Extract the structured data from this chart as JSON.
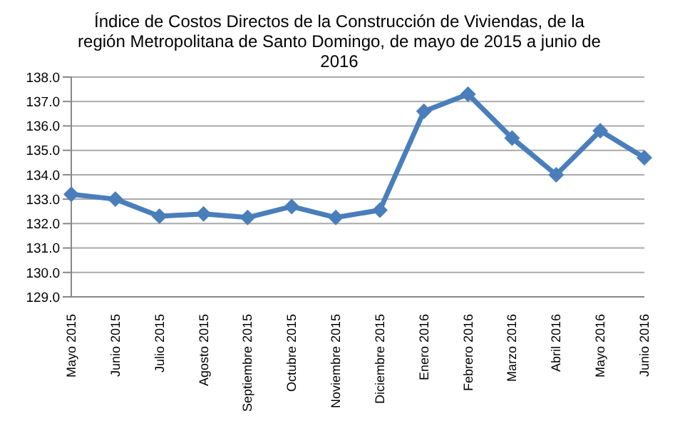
{
  "chart_data": {
    "type": "line",
    "title": "Índice de Costos Directos de la Construcción de Viviendas, de la región Metropolitana de Santo Domingo, de mayo de 2015 a junio de 2016",
    "categories": [
      "Mayo 2015",
      "Junio 2015",
      "Julio 2015",
      "Agosto 2015",
      "Septiembre 2015",
      "Octubre 2015",
      "Noviembre 2015",
      "Diciembre 2015",
      "Enero 2016",
      "Febrero 2016",
      "Marzo 2016",
      "Abril 2016",
      "Mayo 2016",
      "Junio 2016"
    ],
    "series": [
      {
        "color": "#4a7ebb",
        "values": [
          133.2,
          133.0,
          132.3,
          132.4,
          132.25,
          132.7,
          132.25,
          132.55,
          136.6,
          137.3,
          135.5,
          134.0,
          135.8,
          134.7
        ]
      }
    ],
    "ylim": [
      129,
      138
    ],
    "yticks": [
      {
        "value": 129,
        "label": "129.0"
      },
      {
        "value": 130,
        "label": "130.0"
      },
      {
        "value": 131,
        "label": "131.0"
      },
      {
        "value": 132,
        "label": "132.0"
      },
      {
        "value": 133,
        "label": "133.0"
      },
      {
        "value": 134,
        "label": "134.0"
      },
      {
        "value": 135,
        "label": "135.0"
      },
      {
        "value": 136,
        "label": "136.0"
      },
      {
        "value": 137,
        "label": "137.0"
      },
      {
        "value": 138,
        "label": "138.0"
      }
    ],
    "grid": "y",
    "marker": "diamond"
  }
}
